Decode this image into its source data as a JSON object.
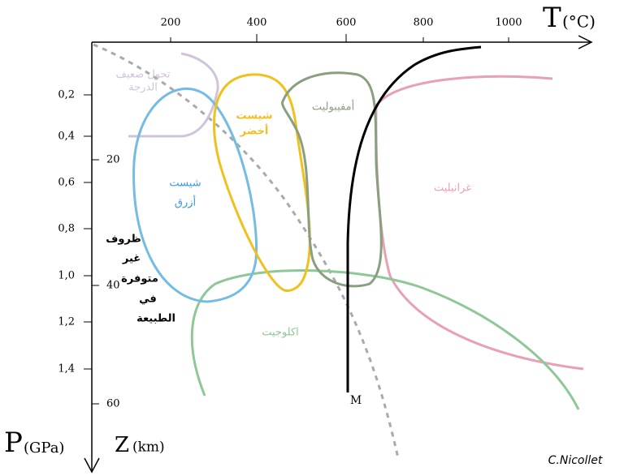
{
  "axes": {
    "t_label": "T",
    "t_unit": "(°C)",
    "t_ticks": [
      "200",
      "400",
      "600",
      "800",
      "1000"
    ],
    "p_label": "P",
    "p_unit": "(GPa)",
    "p_ticks": [
      "0,2",
      "0,4",
      "0,6",
      "0,8",
      "1,0",
      "1,2",
      "1,4"
    ],
    "z_label": "Z",
    "z_unit": "(km)",
    "z_ticks": [
      "20",
      "40",
      "60"
    ]
  },
  "regions": {
    "low_grade": [
      "تحول ضعيف",
      "الدرجة"
    ],
    "greenschist": [
      "شيست",
      "أخضر"
    ],
    "amphibolite": "أمفيبوليت",
    "granulite": "غرانيليت",
    "blueschist": [
      "شيست",
      "أزرق"
    ],
    "unavailable": [
      "ظروف",
      "غير",
      "متوفرة",
      "في",
      "الطبيعة"
    ],
    "eclogite": "اكلوجيت"
  },
  "curve_label": "M",
  "credit": "C.Nicollet"
}
